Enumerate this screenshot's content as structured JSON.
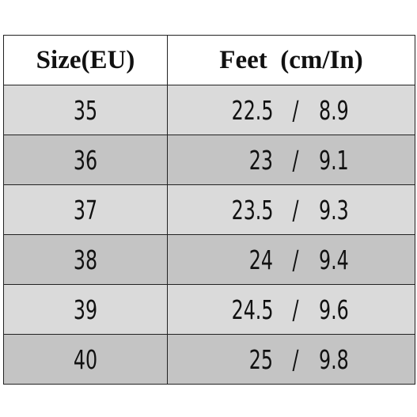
{
  "table": {
    "headers": {
      "size": "Size(EU)",
      "feet": "Feet  (cm/In)"
    },
    "separator": "/",
    "rows": [
      {
        "size": "35",
        "cm": "22.5",
        "inch": "8.9"
      },
      {
        "size": "36",
        "cm": "23",
        "inch": "9.1"
      },
      {
        "size": "37",
        "cm": "23.5",
        "inch": "9.3"
      },
      {
        "size": "38",
        "cm": "24",
        "inch": "9.4"
      },
      {
        "size": "39",
        "cm": "24.5",
        "inch": "9.6"
      },
      {
        "size": "40",
        "cm": "25",
        "inch": "9.8"
      }
    ],
    "colors": {
      "row_light": "#dadada",
      "row_dark": "#c4c4c4",
      "header_bg": "#ffffff",
      "border": "#222222",
      "text": "#111111"
    }
  }
}
